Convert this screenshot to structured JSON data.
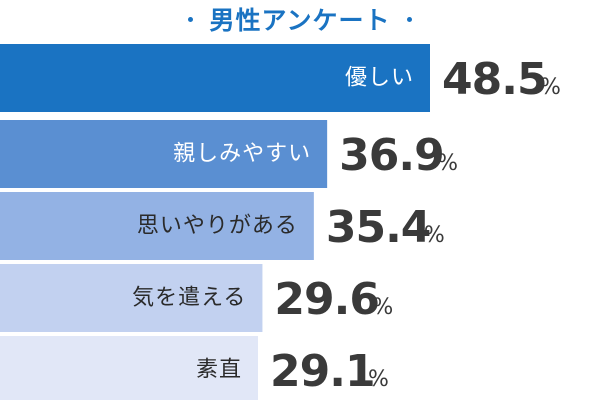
{
  "chart_data": {
    "type": "bar",
    "orientation": "horizontal",
    "title": "男性アンケート",
    "categories": [
      "優しい",
      "親しみやすい",
      "思いやりがある",
      "気を遣える",
      "素直"
    ],
    "values": [
      48.5,
      36.9,
      35.4,
      29.6,
      29.1
    ],
    "value_suffix": "%",
    "grid": false,
    "legend": "none",
    "colors": {
      "title": "#1a73c2",
      "bars": [
        "#1a73c2",
        "#5a8fd2",
        "#93b2e4",
        "#c2d1f0",
        "#e1e7f7"
      ],
      "label_text": [
        "#ffffff",
        "#ffffff",
        "#2a2a2a",
        "#2a2a2a",
        "#2a2a2a"
      ],
      "value_text": "#3a3a3a"
    }
  }
}
